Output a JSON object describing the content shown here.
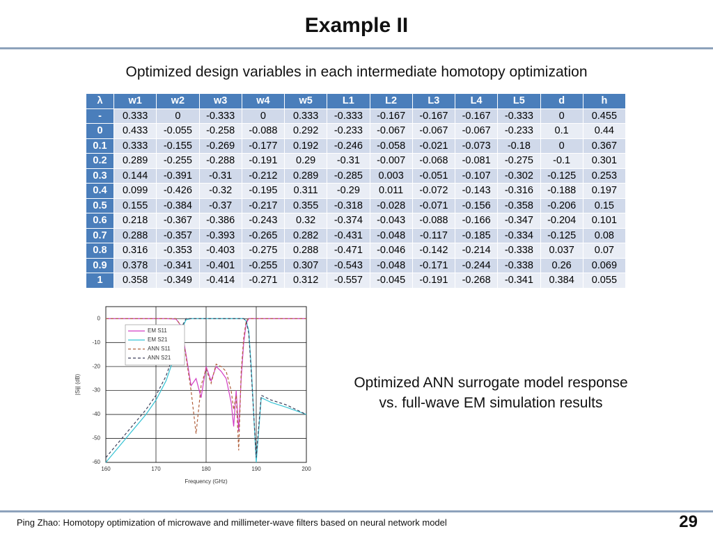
{
  "slide": {
    "title": "Example II",
    "subtitle": "Optimized design variables in each intermediate homotopy optimization",
    "caption": [
      "Optimized ANN surrogate model response",
      "vs. full-wave EM simulation results"
    ],
    "footer": "Ping Zhao: Homotopy optimization of microwave and millimeter-wave filters based on neural network model",
    "page_number": "29"
  },
  "table": {
    "columns": [
      "λ",
      "w1",
      "w2",
      "w3",
      "w4",
      "w5",
      "L1",
      "L2",
      "L3",
      "L4",
      "L5",
      "d",
      "h"
    ],
    "rows": [
      [
        "-",
        "0.333",
        "0",
        "-0.333",
        "0",
        "0.333",
        "-0.333",
        "-0.167",
        "-0.167",
        "-0.167",
        "-0.333",
        "0",
        "0.455"
      ],
      [
        "0",
        "0.433",
        "-0.055",
        "-0.258",
        "-0.088",
        "0.292",
        "-0.233",
        "-0.067",
        "-0.067",
        "-0.067",
        "-0.233",
        "0.1",
        "0.44"
      ],
      [
        "0.1",
        "0.333",
        "-0.155",
        "-0.269",
        "-0.177",
        "0.192",
        "-0.246",
        "-0.058",
        "-0.021",
        "-0.073",
        "-0.18",
        "0",
        "0.367"
      ],
      [
        "0.2",
        "0.289",
        "-0.255",
        "-0.288",
        "-0.191",
        "0.29",
        "-0.31",
        "-0.007",
        "-0.068",
        "-0.081",
        "-0.275",
        "-0.1",
        "0.301"
      ],
      [
        "0.3",
        "0.144",
        "-0.391",
        "-0.31",
        "-0.212",
        "0.289",
        "-0.285",
        "0.003",
        "-0.051",
        "-0.107",
        "-0.302",
        "-0.125",
        "0.253"
      ],
      [
        "0.4",
        "0.099",
        "-0.426",
        "-0.32",
        "-0.195",
        "0.311",
        "-0.29",
        "0.011",
        "-0.072",
        "-0.143",
        "-0.316",
        "-0.188",
        "0.197"
      ],
      [
        "0.5",
        "0.155",
        "-0.384",
        "-0.37",
        "-0.217",
        "0.355",
        "-0.318",
        "-0.028",
        "-0.071",
        "-0.156",
        "-0.358",
        "-0.206",
        "0.15"
      ],
      [
        "0.6",
        "0.218",
        "-0.367",
        "-0.386",
        "-0.243",
        "0.32",
        "-0.374",
        "-0.043",
        "-0.088",
        "-0.166",
        "-0.347",
        "-0.204",
        "0.101"
      ],
      [
        "0.7",
        "0.288",
        "-0.357",
        "-0.393",
        "-0.265",
        "0.282",
        "-0.431",
        "-0.048",
        "-0.117",
        "-0.185",
        "-0.334",
        "-0.125",
        "0.08"
      ],
      [
        "0.8",
        "0.316",
        "-0.353",
        "-0.403",
        "-0.275",
        "0.288",
        "-0.471",
        "-0.046",
        "-0.142",
        "-0.214",
        "-0.338",
        "0.037",
        "0.07"
      ],
      [
        "0.9",
        "0.378",
        "-0.341",
        "-0.401",
        "-0.255",
        "0.307",
        "-0.543",
        "-0.048",
        "-0.171",
        "-0.244",
        "-0.338",
        "0.26",
        "0.069"
      ],
      [
        "1",
        "0.358",
        "-0.349",
        "-0.414",
        "-0.271",
        "0.312",
        "-0.557",
        "-0.045",
        "-0.191",
        "-0.268",
        "-0.341",
        "0.384",
        "0.055"
      ]
    ]
  },
  "chart_data": {
    "type": "line",
    "xlabel": "Frequency (GHz)",
    "ylabel": "|Sij| (dB)",
    "x": [
      160,
      162,
      164,
      166,
      168,
      170,
      172,
      174,
      175,
      176,
      177,
      178,
      179,
      180,
      181,
      182,
      183,
      184,
      185,
      185.5,
      186,
      186.5,
      187,
      187.5,
      188,
      188.5,
      189,
      190,
      191,
      193,
      196,
      200
    ],
    "xlim": [
      160,
      200
    ],
    "xticks": [
      160,
      170,
      180,
      190,
      200
    ],
    "ylim": [
      -60,
      5
    ],
    "yticks": [
      -60,
      -50,
      -40,
      -30,
      -20,
      -10,
      0
    ],
    "grid": true,
    "series": [
      {
        "name": "EM S11",
        "color": "#d23cc4",
        "dashed": false,
        "values": [
          0,
          0,
          0,
          0,
          0,
          0,
          0,
          -0.2,
          -3,
          -15,
          -28,
          -25,
          -33,
          -20,
          -26,
          -20,
          -22,
          -25,
          -35,
          -45,
          -30,
          -47,
          -25,
          -10,
          -2,
          0,
          0,
          0,
          0,
          0,
          0,
          0
        ]
      },
      {
        "name": "EM S21",
        "color": "#35c3d4",
        "dashed": false,
        "values": [
          -60,
          -55,
          -50,
          -45,
          -40,
          -34,
          -26,
          -14,
          -5,
          -0.5,
          0,
          0,
          0,
          0,
          0,
          0,
          0,
          0,
          0,
          0,
          0,
          0,
          0,
          0,
          -1,
          -5,
          -20,
          -60,
          -33,
          -35,
          -37,
          -40
        ]
      },
      {
        "name": "ANN S11",
        "color": "#b0603c",
        "dashed": true,
        "values": [
          0,
          0,
          0,
          0,
          0,
          0,
          0,
          0,
          -3,
          -16,
          -30,
          -48,
          -28,
          -21,
          -27,
          -19,
          -20,
          -22,
          -30,
          -38,
          -32,
          -55,
          -22,
          -8,
          -1,
          0,
          0,
          0,
          0,
          0,
          0,
          0
        ]
      },
      {
        "name": "ANN S21",
        "color": "#3a3f5a",
        "dashed": true,
        "values": [
          -58,
          -53,
          -48,
          -43,
          -38,
          -32,
          -24,
          -12,
          -4,
          0,
          0,
          0,
          0,
          0,
          0,
          0,
          0,
          0,
          0,
          0,
          0,
          0,
          0,
          0,
          -1,
          -6,
          -22,
          -58,
          -32,
          -34,
          -36,
          -40
        ]
      }
    ]
  }
}
